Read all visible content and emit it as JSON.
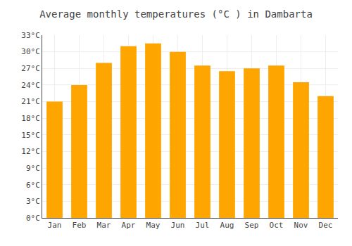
{
  "chart_data": {
    "type": "bar",
    "title": "Average monthly temperatures (°C ) in Dambarta",
    "categories": [
      "Jan",
      "Feb",
      "Mar",
      "Apr",
      "May",
      "Jun",
      "Jul",
      "Aug",
      "Sep",
      "Oct",
      "Nov",
      "Dec"
    ],
    "values": [
      21,
      24,
      28,
      31,
      31.5,
      30,
      27.5,
      26.5,
      27,
      27.5,
      24.5,
      22
    ],
    "color": "#FFA500",
    "ylim": [
      0,
      33
    ],
    "yticks": [
      {
        "value": 0,
        "label": "0°C"
      },
      {
        "value": 3,
        "label": "3°C"
      },
      {
        "value": 6,
        "label": "6°C"
      },
      {
        "value": 9,
        "label": "9°C"
      },
      {
        "value": 12,
        "label": "12°C"
      },
      {
        "value": 15,
        "label": "15°C"
      },
      {
        "value": 18,
        "label": "18°C"
      },
      {
        "value": 21,
        "label": "21°C"
      },
      {
        "value": 24,
        "label": "24°C"
      },
      {
        "value": 27,
        "label": "27°C"
      },
      {
        "value": 30,
        "label": "30°C"
      },
      {
        "value": 33,
        "label": "33°C"
      }
    ],
    "grid": true
  }
}
